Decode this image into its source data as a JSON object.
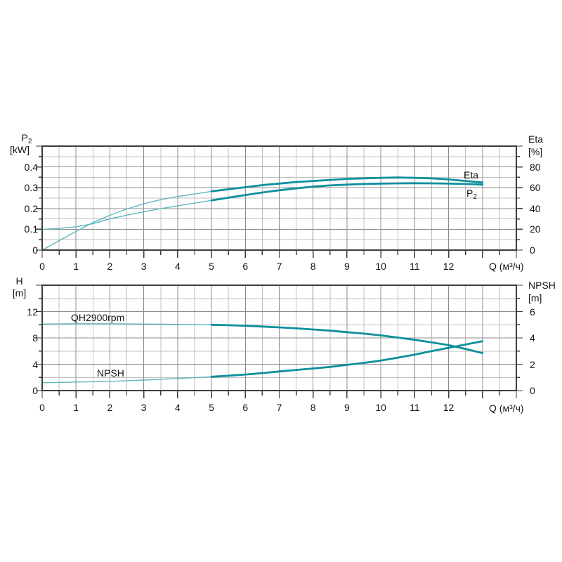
{
  "colors": {
    "curve_bold": "#0d8f9c",
    "curve_thin": "#5fb6c0",
    "grid_major": "#8c8c8c",
    "grid_minor": "#bfbfbf",
    "axis": "#3d3d3d",
    "text": "#161616",
    "background": "#ffffff"
  },
  "chart_data": [
    {
      "type": "line",
      "id": "power-efficiency-chart",
      "left_axis": {
        "name": "P",
        "name_sub": "2",
        "unit": "[kW]",
        "range": [
          0,
          0.5
        ],
        "major_step": 0.1,
        "minor_step": 0.05,
        "tick_values": [
          0.4,
          0.3,
          0.2,
          0.1,
          0
        ],
        "tick_labels": [
          "0.4",
          "0.3",
          "0.2",
          "0.1",
          "0"
        ]
      },
      "right_axis": {
        "name": "Eta",
        "unit": "[%]",
        "range": [
          0,
          100
        ],
        "major_step": 20,
        "minor_step": 10,
        "tick_values": [
          80,
          60,
          40,
          20,
          0
        ],
        "tick_labels": [
          "80",
          "60",
          "40",
          "20",
          "0"
        ]
      },
      "x_axis": {
        "unit": "Q (м³/ч)",
        "range": [
          0,
          14
        ],
        "major_step": 1,
        "minor_step": 0.5,
        "tick_values": [
          0,
          1,
          2,
          3,
          4,
          5,
          6,
          7,
          8,
          9,
          10,
          11,
          12
        ],
        "tick_labels": [
          "0",
          "1",
          "2",
          "3",
          "4",
          "5",
          "6",
          "7",
          "8",
          "9",
          "10",
          "11",
          "12"
        ]
      },
      "series": [
        {
          "name": "P2",
          "label": "P",
          "label_sub": "2",
          "axis": "left",
          "bold_from_x": 5,
          "points": [
            [
              0,
              0.1
            ],
            [
              0.5,
              0.104
            ],
            [
              1,
              0.112
            ],
            [
              1.5,
              0.127
            ],
            [
              2,
              0.15
            ],
            [
              2.5,
              0.168
            ],
            [
              3,
              0.184
            ],
            [
              3.5,
              0.199
            ],
            [
              4,
              0.213
            ],
            [
              4.5,
              0.226
            ],
            [
              5,
              0.239
            ],
            [
              5.5,
              0.252
            ],
            [
              6,
              0.265
            ],
            [
              6.5,
              0.277
            ],
            [
              7,
              0.288
            ],
            [
              7.5,
              0.297
            ],
            [
              8,
              0.305
            ],
            [
              8.5,
              0.311
            ],
            [
              9,
              0.315
            ],
            [
              9.5,
              0.318
            ],
            [
              10,
              0.32
            ],
            [
              10.5,
              0.321
            ],
            [
              11,
              0.3215
            ],
            [
              11.5,
              0.321
            ],
            [
              12,
              0.32
            ],
            [
              12.5,
              0.318
            ],
            [
              13,
              0.315
            ]
          ]
        },
        {
          "name": "Eta",
          "label": "Eta",
          "label_sub": "",
          "axis": "right",
          "bold_from_x": 5,
          "points": [
            [
              0,
              0
            ],
            [
              0.5,
              9
            ],
            [
              1,
              18
            ],
            [
              1.5,
              26.5
            ],
            [
              2,
              33.5
            ],
            [
              2.5,
              39.5
            ],
            [
              3,
              44.5
            ],
            [
              3.5,
              48.5
            ],
            [
              4,
              51.5
            ],
            [
              4.5,
              54
            ],
            [
              5,
              56.5
            ],
            [
              5.5,
              58.5
            ],
            [
              6,
              60.5
            ],
            [
              6.5,
              62.5
            ],
            [
              7,
              64
            ],
            [
              7.5,
              65.5
            ],
            [
              8,
              66.5
            ],
            [
              8.5,
              67.5
            ],
            [
              9,
              68.5
            ],
            [
              9.5,
              69
            ],
            [
              10,
              69.5
            ],
            [
              10.5,
              69.8
            ],
            [
              11,
              69.5
            ],
            [
              11.5,
              69
            ],
            [
              12,
              68
            ],
            [
              12.5,
              66.5
            ],
            [
              13,
              65
            ]
          ]
        }
      ]
    },
    {
      "type": "line",
      "id": "head-npsh-chart",
      "left_axis": {
        "name": "H",
        "name_sub": "",
        "unit": "[m]",
        "range": [
          0,
          16
        ],
        "major_step": 4,
        "minor_step": 2,
        "tick_values": [
          12,
          8,
          4,
          0
        ],
        "tick_labels": [
          "12",
          "8",
          "4",
          "0"
        ]
      },
      "right_axis": {
        "name": "NPSH",
        "unit": "[m]",
        "range": [
          0,
          8
        ],
        "major_step": 2,
        "minor_step": 1,
        "tick_values": [
          6,
          4,
          2,
          0
        ],
        "tick_labels": [
          "6",
          "4",
          "2",
          "0"
        ]
      },
      "x_axis": {
        "unit": "Q (м³/ч)",
        "range": [
          0,
          14
        ],
        "major_step": 1,
        "minor_step": 0.5,
        "tick_values": [
          0,
          1,
          2,
          3,
          4,
          5,
          6,
          7,
          8,
          9,
          10,
          11,
          12
        ],
        "tick_labels": [
          "0",
          "1",
          "2",
          "3",
          "4",
          "5",
          "6",
          "7",
          "8",
          "9",
          "10",
          "11",
          "12"
        ]
      },
      "series": [
        {
          "name": "QH2900rpm",
          "label": "QH2900rpm",
          "label_sub": "",
          "axis": "left",
          "bold_from_x": 5,
          "points": [
            [
              0,
              10.1
            ],
            [
              0.5,
              10.12
            ],
            [
              1,
              10.15
            ],
            [
              1.5,
              10.15
            ],
            [
              2,
              10.15
            ],
            [
              2.5,
              10.12
            ],
            [
              3,
              10.1
            ],
            [
              3.5,
              10.08
            ],
            [
              4,
              10.05
            ],
            [
              4.5,
              10.02
            ],
            [
              5,
              10.0
            ],
            [
              5.5,
              9.93
            ],
            [
              6,
              9.85
            ],
            [
              6.5,
              9.73
            ],
            [
              7,
              9.6
            ],
            [
              7.5,
              9.45
            ],
            [
              8,
              9.28
            ],
            [
              8.5,
              9.1
            ],
            [
              9,
              8.88
            ],
            [
              9.5,
              8.65
            ],
            [
              10,
              8.38
            ],
            [
              10.5,
              8.05
            ],
            [
              11,
              7.7
            ],
            [
              11.5,
              7.32
            ],
            [
              12,
              6.9
            ],
            [
              12.5,
              6.32
            ],
            [
              13,
              5.7
            ]
          ]
        },
        {
          "name": "NPSH",
          "label": "NPSH",
          "label_sub": "",
          "axis": "right",
          "bold_from_x": 5,
          "points": [
            [
              0,
              0.6
            ],
            [
              0.5,
              0.62
            ],
            [
              1,
              0.65
            ],
            [
              1.5,
              0.67
            ],
            [
              2,
              0.7
            ],
            [
              2.5,
              0.75
            ],
            [
              3,
              0.8
            ],
            [
              3.5,
              0.86
            ],
            [
              4,
              0.92
            ],
            [
              4.5,
              0.98
            ],
            [
              5,
              1.05
            ],
            [
              5.5,
              1.13
            ],
            [
              6,
              1.22
            ],
            [
              6.5,
              1.33
            ],
            [
              7,
              1.45
            ],
            [
              7.5,
              1.57
            ],
            [
              8,
              1.68
            ],
            [
              8.5,
              1.8
            ],
            [
              9,
              1.95
            ],
            [
              9.5,
              2.1
            ],
            [
              10,
              2.28
            ],
            [
              10.5,
              2.5
            ],
            [
              11,
              2.73
            ],
            [
              11.5,
              3.0
            ],
            [
              12,
              3.25
            ],
            [
              12.5,
              3.5
            ],
            [
              13,
              3.75
            ]
          ]
        }
      ]
    }
  ]
}
